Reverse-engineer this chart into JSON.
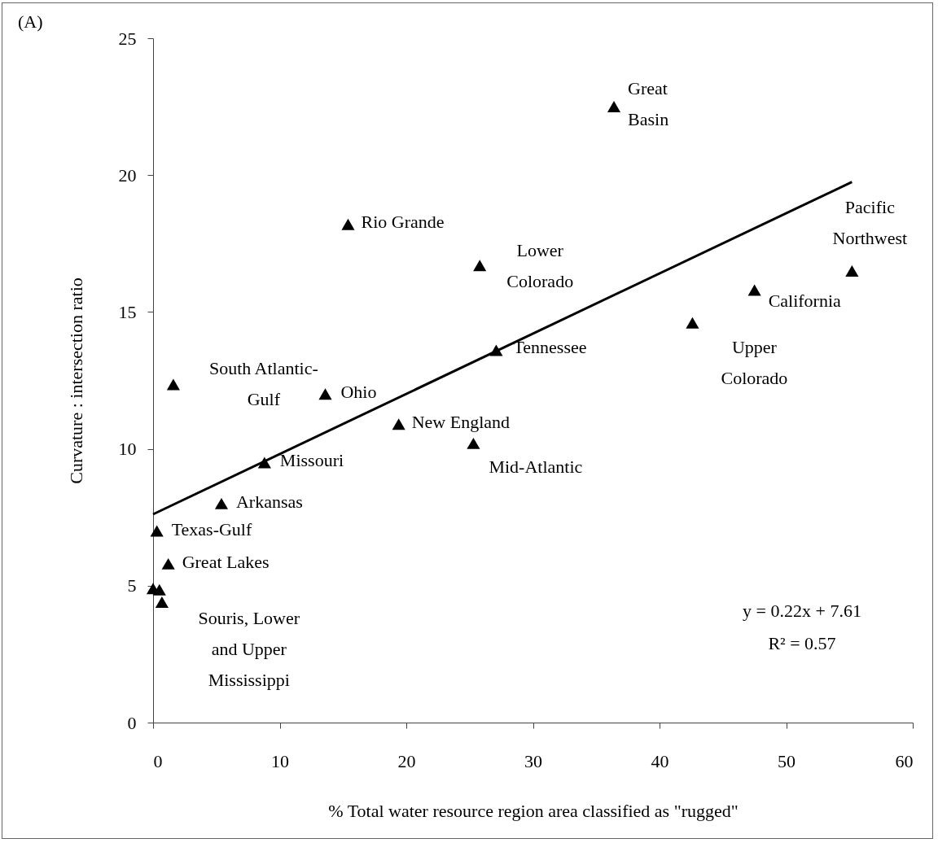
{
  "chart_data": {
    "type": "scatter",
    "xlabel": "% Total water resource region area classified as \"rugged\"",
    "ylabel": "Curvature : intersection ratio",
    "xlim": [
      0,
      60
    ],
    "xticks": [
      0,
      10,
      20,
      30,
      40,
      50,
      60
    ],
    "ylim": [
      0,
      25
    ],
    "yticks": [
      0,
      5,
      10,
      15,
      20,
      25
    ],
    "grid": false,
    "series": [
      {
        "marker": "triangle",
        "color": "#000000",
        "x": [
          36.4,
          15.4,
          25.8,
          27.1,
          1.6,
          13.6,
          19.4,
          25.3,
          8.8,
          5.4,
          0.3,
          1.2,
          0.0,
          0.5,
          0.7,
          42.6,
          47.5,
          55.2
        ],
        "values": [
          22.5,
          18.2,
          16.7,
          13.6,
          12.35,
          12.0,
          10.9,
          10.2,
          9.5,
          8.0,
          7.0,
          5.8,
          4.9,
          4.85,
          4.4,
          14.6,
          15.8,
          16.5
        ]
      },
      {
        "type": "line",
        "color": "#000000",
        "x": [
          0,
          55.2
        ],
        "values": [
          7.61,
          19.75
        ],
        "line_style": "solid"
      }
    ],
    "annotations": [
      {
        "text": "Great Basin",
        "x": 36.4,
        "y": 22.5
      },
      {
        "text": "Rio Grande",
        "x": 15.4,
        "y": 18.2
      },
      {
        "text": "Lower Colorado",
        "x": 25.8,
        "y": 16.7
      },
      {
        "text": "Tennessee",
        "x": 27.1,
        "y": 13.6
      },
      {
        "text": "South Atlantic-Gulf",
        "x": 1.6,
        "y": 12.35
      },
      {
        "text": "Ohio",
        "x": 13.6,
        "y": 12.0
      },
      {
        "text": "New England",
        "x": 19.4,
        "y": 10.9
      },
      {
        "text": "Mid-Atlantic",
        "x": 25.3,
        "y": 10.2
      },
      {
        "text": "Missouri",
        "x": 8.8,
        "y": 9.5
      },
      {
        "text": "Arkansas",
        "x": 5.4,
        "y": 8.0
      },
      {
        "text": "Texas-Gulf",
        "x": 0.3,
        "y": 7.0
      },
      {
        "text": "Great Lakes",
        "x": 1.2,
        "y": 5.8
      },
      {
        "text": "Souris, Lower and Upper Mississippi",
        "x": 0.5,
        "y": 4.85
      },
      {
        "text": "Upper Colorado",
        "x": 42.6,
        "y": 14.6
      },
      {
        "text": "California",
        "x": 47.5,
        "y": 15.8
      },
      {
        "text": "Pacific Northwest",
        "x": 55.2,
        "y": 16.5
      },
      "y = 0.22x + 7.61",
      "R² = 0.57",
      "(A)"
    ]
  }
}
